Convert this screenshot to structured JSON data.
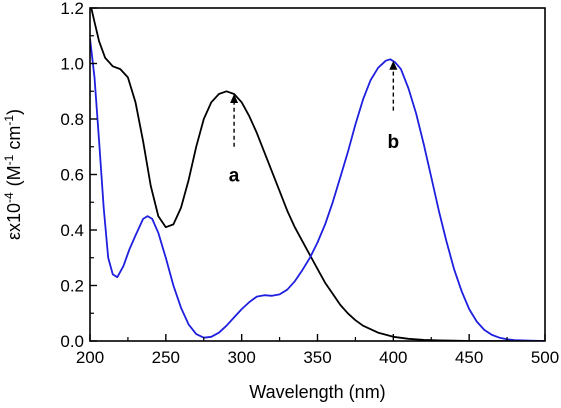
{
  "chart_data": {
    "type": "line",
    "title": "",
    "xlabel": "Wavelength (nm)",
    "ylabel_prefix": "εx10",
    "ylabel_exp": "-4",
    "ylabel_units": "(M",
    "ylabel_units_exp1": "-1",
    "ylabel_units_mid": "cm",
    "ylabel_units_exp2": "-1",
    "ylabel_close": ")",
    "xlim": [
      200,
      500
    ],
    "ylim": [
      0.0,
      1.2
    ],
    "xticks": [
      200,
      250,
      300,
      350,
      400,
      450,
      500
    ],
    "xtick_labels": [
      "200",
      "250",
      "300",
      "350",
      "400",
      "450",
      "500"
    ],
    "yticks": [
      0.0,
      0.2,
      0.4,
      0.6,
      0.8,
      1.0,
      1.2
    ],
    "ytick_labels": [
      "0.0",
      "0.2",
      "0.4",
      "0.6",
      "0.8",
      "1.0",
      "1.2"
    ],
    "grid": false,
    "series": [
      {
        "color": "#000000",
        "x": [
          200,
          203,
          206,
          210,
          215,
          220,
          225,
          230,
          235,
          240,
          245,
          250,
          255,
          260,
          265,
          270,
          275,
          280,
          285,
          290,
          295,
          300,
          305,
          310,
          315,
          320,
          325,
          330,
          335,
          340,
          345,
          350,
          355,
          360,
          365,
          370,
          375,
          380,
          390,
          400,
          410,
          420,
          430,
          440,
          450,
          460,
          480,
          500
        ],
        "y": [
          1.22,
          1.15,
          1.08,
          1.02,
          0.99,
          0.98,
          0.95,
          0.86,
          0.72,
          0.56,
          0.45,
          0.41,
          0.42,
          0.48,
          0.58,
          0.7,
          0.8,
          0.86,
          0.89,
          0.9,
          0.89,
          0.86,
          0.81,
          0.75,
          0.68,
          0.61,
          0.54,
          0.47,
          0.41,
          0.36,
          0.31,
          0.26,
          0.21,
          0.17,
          0.13,
          0.1,
          0.075,
          0.055,
          0.03,
          0.015,
          0.008,
          0.004,
          0.002,
          0.001,
          0.0,
          0.0,
          0.0,
          0.0
        ]
      },
      {
        "color": "#1f1fe0",
        "x": [
          200,
          203,
          206,
          209,
          212,
          215,
          218,
          222,
          226,
          230,
          235,
          238,
          241,
          245,
          250,
          255,
          260,
          265,
          270,
          275,
          280,
          285,
          290,
          295,
          300,
          305,
          310,
          315,
          320,
          325,
          330,
          335,
          340,
          345,
          350,
          355,
          360,
          365,
          370,
          375,
          380,
          385,
          390,
          395,
          398,
          401,
          405,
          410,
          415,
          420,
          425,
          430,
          435,
          440,
          445,
          450,
          455,
          460,
          465,
          470,
          475,
          480,
          490,
          500
        ],
        "y": [
          1.09,
          0.95,
          0.72,
          0.48,
          0.3,
          0.24,
          0.23,
          0.27,
          0.33,
          0.38,
          0.44,
          0.45,
          0.44,
          0.39,
          0.3,
          0.2,
          0.12,
          0.06,
          0.025,
          0.012,
          0.015,
          0.03,
          0.055,
          0.085,
          0.115,
          0.14,
          0.16,
          0.165,
          0.163,
          0.168,
          0.185,
          0.215,
          0.255,
          0.3,
          0.355,
          0.42,
          0.5,
          0.59,
          0.68,
          0.78,
          0.87,
          0.94,
          0.985,
          1.01,
          1.015,
          1.005,
          0.98,
          0.91,
          0.82,
          0.71,
          0.59,
          0.47,
          0.36,
          0.26,
          0.18,
          0.115,
          0.07,
          0.04,
          0.022,
          0.012,
          0.006,
          0.003,
          0.001,
          0.0
        ]
      }
    ],
    "annotations": [
      {
        "text": "a",
        "x": 295,
        "y_text": 0.6,
        "arrow_from": 0.7,
        "arrow_to": 0.89
      },
      {
        "text": "b",
        "x": 400,
        "y_text": 0.72,
        "arrow_from": 0.83,
        "arrow_to": 1.01
      }
    ]
  }
}
